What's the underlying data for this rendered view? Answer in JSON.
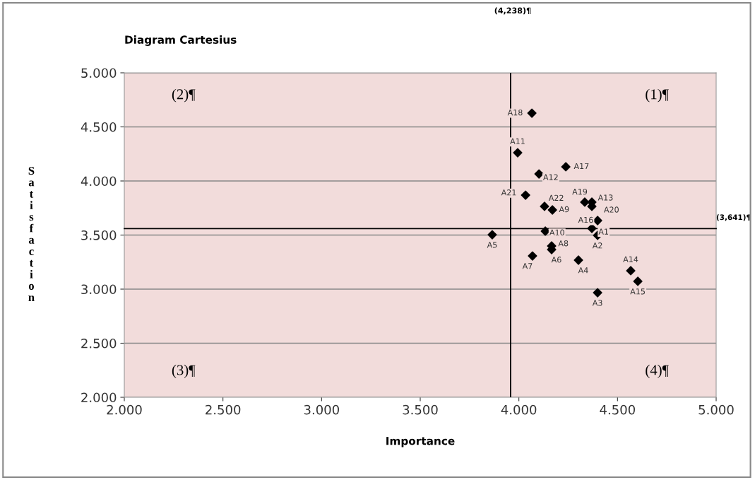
{
  "chart_data": {
    "type": "scatter",
    "title": "Diagram Cartesius",
    "xlabel": "Importance",
    "ylabel": "Satisfaction",
    "x": [
      4.37,
      4.399,
      4.399,
      4.302,
      3.865,
      4.166,
      4.069,
      4.166,
      4.17,
      4.134,
      3.994,
      4.102,
      4.37,
      4.567,
      4.603,
      4.399,
      4.238,
      4.066,
      4.334,
      4.37,
      4.034,
      4.13
    ],
    "series": [
      {
        "color": "#000000",
        "values": [
          3.562,
          3.497,
          2.967,
          3.268,
          3.503,
          3.366,
          3.307,
          3.399,
          3.732,
          3.536,
          4.261,
          4.065,
          3.804,
          3.17,
          3.072,
          3.634,
          4.131,
          4.627,
          3.804,
          3.765,
          3.869,
          3.765
        ]
      }
    ],
    "marker": "diamond",
    "grid": "y",
    "xlim": [
      2,
      5
    ],
    "ylim": [
      2,
      5
    ],
    "xticks": [
      {
        "value": 2,
        "label": "2.000"
      },
      {
        "value": 2.5,
        "label": "2.500"
      },
      {
        "value": 3,
        "label": "3.000"
      },
      {
        "value": 3.5,
        "label": "3.500"
      },
      {
        "value": 4,
        "label": "4.000"
      },
      {
        "value": 4.5,
        "label": "4.500"
      },
      {
        "value": 5,
        "label": "5.000"
      }
    ],
    "yticks": [
      {
        "value": 2,
        "label": "2.000"
      },
      {
        "value": 2.5,
        "label": "2.500"
      },
      {
        "value": 3,
        "label": "3.000"
      },
      {
        "value": 3.5,
        "label": "3.500"
      },
      {
        "value": 4,
        "label": "4.000"
      },
      {
        "value": 4.5,
        "label": "4.500"
      },
      {
        "value": 5,
        "label": "5.000"
      }
    ],
    "ref_lines": [
      {
        "axis": "x",
        "value": 3.958,
        "color": "#000000"
      },
      {
        "axis": "y",
        "value": 3.56,
        "color": "#000000"
      }
    ],
    "annotations": [
      "(4,238)¶",
      "(3,641)¶",
      "(1)¶",
      "(2)¶",
      "(3)¶",
      "(4)¶",
      {
        "text": "A1",
        "x": 4.37,
        "y": 3.562
      },
      {
        "text": "A2",
        "x": 4.399,
        "y": 3.497
      },
      {
        "text": "A3",
        "x": 4.399,
        "y": 2.967
      },
      {
        "text": "A4",
        "x": 4.302,
        "y": 3.268
      },
      {
        "text": "A5",
        "x": 3.865,
        "y": 3.503
      },
      {
        "text": "A6",
        "x": 4.166,
        "y": 3.366
      },
      {
        "text": "A7",
        "x": 4.069,
        "y": 3.307
      },
      {
        "text": "A8",
        "x": 4.166,
        "y": 3.399
      },
      {
        "text": "A9",
        "x": 4.17,
        "y": 3.732
      },
      {
        "text": "A10",
        "x": 4.134,
        "y": 3.536
      },
      {
        "text": "A11",
        "x": 3.994,
        "y": 4.261
      },
      {
        "text": "A12",
        "x": 4.102,
        "y": 4.065
      },
      {
        "text": "A13",
        "x": 4.37,
        "y": 3.804
      },
      {
        "text": "A14",
        "x": 4.567,
        "y": 3.17
      },
      {
        "text": "A15",
        "x": 4.603,
        "y": 3.072
      },
      {
        "text": "A16",
        "x": 4.399,
        "y": 3.634
      },
      {
        "text": "A17",
        "x": 4.238,
        "y": 4.131
      },
      {
        "text": "A18",
        "x": 4.066,
        "y": 4.627
      },
      {
        "text": "A19",
        "x": 4.334,
        "y": 3.804
      },
      {
        "text": "A20",
        "x": 4.37,
        "y": 3.765
      },
      {
        "text": "A21",
        "x": 4.034,
        "y": 3.869
      },
      {
        "text": "A22",
        "x": 4.13,
        "y": 3.765
      }
    ]
  }
}
